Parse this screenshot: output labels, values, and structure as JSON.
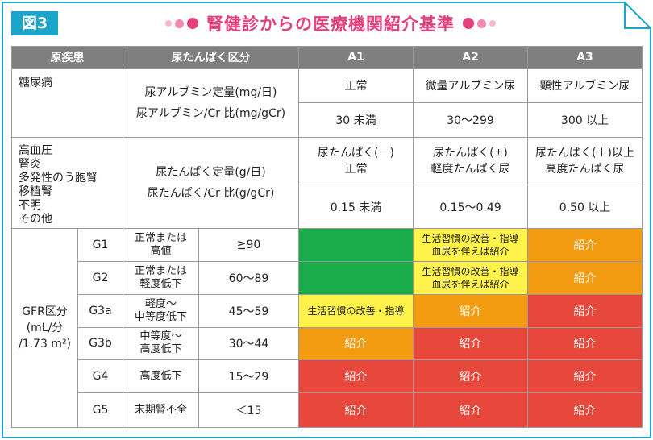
{
  "figure_label": "図3",
  "title": "腎健診からの医療機関紹介基準",
  "colors": {
    "accent": "#1aa5c9",
    "title": "#e3417e",
    "header": "#7f7f7f",
    "green": "#1aab4a",
    "yellow": "#fff24a",
    "orange": "#f39c12",
    "red": "#e8483b"
  },
  "header": {
    "col1": "原疾患",
    "col2": "尿たんぱく区分",
    "a1": "A1",
    "a2": "A2",
    "a3": "A3"
  },
  "diabetes": {
    "disease": "糖尿病",
    "label_line1": "尿アルブミン定量(mg/日)",
    "label_line2": "尿アルブミン/Cr 比(mg/gCr)",
    "a1_text": "正常",
    "a2_text": "微量アルブミン尿",
    "a3_text": "顕性アルブミン尿",
    "a1_value": "30 未満",
    "a2_value": "30～299",
    "a3_value": "300 以上"
  },
  "other": {
    "diseases": [
      "高血圧",
      "腎炎",
      "多発性のう胞腎",
      "移植腎",
      "不明",
      "その他"
    ],
    "label_line1": "尿たんぱく定量(g/日)",
    "label_line2": "尿たんぱく/Cr 比(g/gCr)",
    "a1_text_line1": "尿たんぱく(－)",
    "a1_text_line2": "正常",
    "a2_text_line1": "尿たんぱく(±)",
    "a2_text_line2": "軽度たんぱく尿",
    "a3_text_line1": "尿たんぱく(＋)以上",
    "a3_text_line2": "高度たんぱく尿",
    "a1_value": "0.15 未満",
    "a2_value": "0.15～0.49",
    "a3_value": "0.50 以上"
  },
  "gfr": {
    "label_line1": "GFR区分",
    "label_line2": "(mL/分",
    "label_line3": "/1.73 m²)",
    "rows": [
      {
        "grade": "G1",
        "desc_line1": "正常または",
        "desc_line2": "高値",
        "range": "≧90",
        "a1": "",
        "a2_line1": "生活習慣の改善・指導",
        "a2_line2": "血尿を伴えば紹介",
        "a3": "紹介"
      },
      {
        "grade": "G2",
        "desc_line1": "正常または",
        "desc_line2": "軽度低下",
        "range": "60～89",
        "a1": "",
        "a2_line1": "生活習慣の改善・指導",
        "a2_line2": "血尿を伴えば紹介",
        "a3": "紹介"
      },
      {
        "grade": "G3a",
        "desc_line1": "軽度～",
        "desc_line2": "中等度低下",
        "range": "45～59",
        "a1": "生活習慣の改善・指導",
        "a2": "紹介",
        "a3": "紹介"
      },
      {
        "grade": "G3b",
        "desc_line1": "中等度～",
        "desc_line2": "高度低下",
        "range": "30～44",
        "a1": "紹介",
        "a2": "紹介",
        "a3": "紹介"
      },
      {
        "grade": "G4",
        "desc_line1": "高度低下",
        "desc_line2": "",
        "range": "15～29",
        "a1": "紹介",
        "a2": "紹介",
        "a3": "紹介"
      },
      {
        "grade": "G5",
        "desc_line1": "末期腎不全",
        "desc_line2": "",
        "range": "＜15",
        "a1": "紹介",
        "a2": "紹介",
        "a3": "紹介"
      }
    ]
  }
}
